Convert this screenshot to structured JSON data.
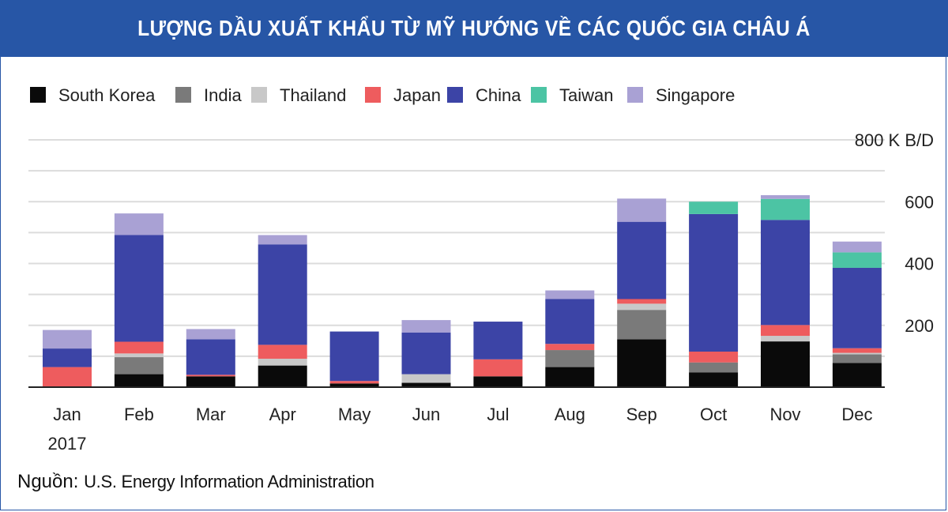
{
  "header": {
    "title": "LƯỢNG DẦU XUẤT KHẨU TỪ MỸ HƯỚNG VỀ CÁC QUỐC GIA CHÂU Á"
  },
  "footer": {
    "source_label": "Nguồn:",
    "source_text": "U.S. Energy Information Administration"
  },
  "chart_data": {
    "type": "bar",
    "stacked": true,
    "categories": [
      "Jan",
      "Feb",
      "Mar",
      "Apr",
      "May",
      "Jun",
      "Jul",
      "Aug",
      "Sep",
      "Oct",
      "Nov",
      "Dec"
    ],
    "x_sublabel": {
      "category": "Jan",
      "text": "2017"
    },
    "ylim": [
      0,
      800
    ],
    "yticks": [
      200,
      400,
      600,
      800
    ],
    "ytick_labels": [
      "200",
      "400",
      "600",
      "800 K B/D"
    ],
    "y_axis_side": "right",
    "grid": true,
    "legend_position": "top-left",
    "series": [
      {
        "name": "South Korea",
        "color": "#0a0a0a",
        "values": [
          0,
          42,
          35,
          70,
          12,
          14,
          35,
          65,
          155,
          48,
          148,
          78
        ]
      },
      {
        "name": "India",
        "color": "#7a7a7a",
        "values": [
          0,
          55,
          0,
          0,
          0,
          0,
          0,
          55,
          95,
          32,
          0,
          28
        ]
      },
      {
        "name": "Thailand",
        "color": "#c8c8c8",
        "values": [
          0,
          12,
          0,
          22,
          0,
          28,
          0,
          0,
          20,
          0,
          18,
          5
        ]
      },
      {
        "name": "Japan",
        "color": "#ee5c5e",
        "values": [
          65,
          38,
          5,
          45,
          8,
          0,
          55,
          20,
          15,
          35,
          35,
          15
        ]
      },
      {
        "name": "China",
        "color": "#3c44a6",
        "values": [
          60,
          345,
          115,
          325,
          160,
          135,
          122,
          145,
          250,
          445,
          340,
          260
        ]
      },
      {
        "name": "Taiwan",
        "color": "#4cc4a4",
        "values": [
          0,
          0,
          0,
          0,
          0,
          0,
          0,
          0,
          0,
          40,
          68,
          50
        ]
      },
      {
        "name": "Singapore",
        "color": "#a9a1d4",
        "values": [
          60,
          70,
          33,
          30,
          0,
          40,
          0,
          28,
          75,
          0,
          12,
          35
        ]
      }
    ]
  }
}
